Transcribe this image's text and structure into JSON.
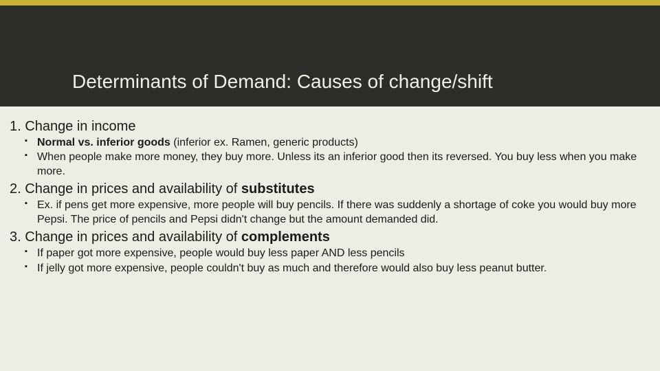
{
  "colors": {
    "page_bg": "#eeede3",
    "band_bg": "#2d2e2a",
    "accent_bar": "#c9b037",
    "title_color": "#f2f0e6",
    "text_color": "#1a1a1a"
  },
  "title": "Determinants of Demand: Causes of change/shift",
  "sections": [
    {
      "num": "1.",
      "heading_plain": "Change in income",
      "heading_bold": "",
      "bullets": [
        {
          "lead_bold": "Normal vs. inferior goods ",
          "rest": "(inferior ex. Ramen, generic products)"
        },
        {
          "lead_bold": "",
          "rest": "When people make more money, they buy more. Unless its an inferior good then its reversed. You buy less when you make more."
        }
      ]
    },
    {
      "num": "2.",
      "heading_plain": "Change in prices and availability of ",
      "heading_bold": "substitutes",
      "bullets": [
        {
          "lead_bold": "",
          "rest": "Ex. if pens get more expensive, more people will buy pencils. If there was suddenly a shortage of coke you would buy more Pepsi. The price of pencils and Pepsi didn't change but the amount demanded did."
        }
      ]
    },
    {
      "num": "3.",
      "heading_plain": "Change in prices and availability of ",
      "heading_bold": "complements",
      "bullets": [
        {
          "lead_bold": "",
          "rest": "If paper got more expensive, people would buy less paper AND less pencils"
        },
        {
          "lead_bold": "",
          "rest": "If jelly got more expensive, people couldn't buy as much and therefore would also buy less peanut butter."
        }
      ]
    }
  ]
}
